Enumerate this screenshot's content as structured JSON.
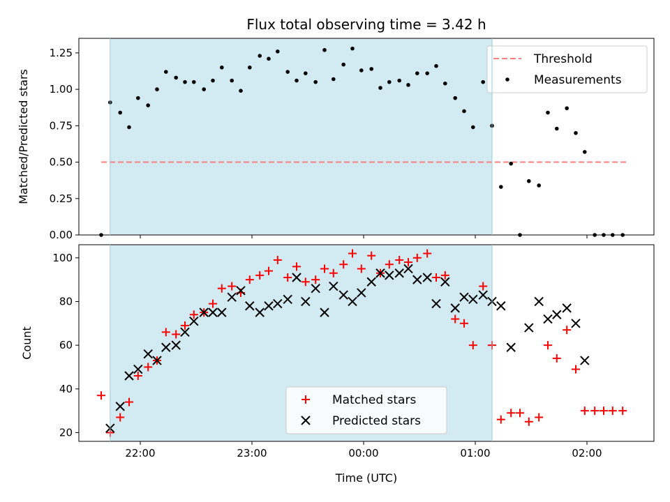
{
  "chart_data": [
    {
      "type": "scatter",
      "title": "Flux total observing time = 3.42 h",
      "ylabel": "Matched/Predicted stars",
      "xlabel": "",
      "x_ticks": [
        "22:00",
        "23:00",
        "00:00",
        "01:00",
        "02:00"
      ],
      "y_ticks": [
        "0.00",
        "0.25",
        "0.50",
        "0.75",
        "1.00",
        "1.25"
      ],
      "ylim": [
        0,
        1.35
      ],
      "xlim_hours": [
        21.45,
        26.6
      ],
      "grid": false,
      "legend_position": "top-right",
      "shaded_span_hours": [
        21.73,
        25.15
      ],
      "shade_color": "#add8e6",
      "threshold": {
        "name": "Threshold",
        "value": 0.5,
        "x_range_hours": [
          21.65,
          26.35
        ],
        "color": "#ff7f7f"
      },
      "series": [
        {
          "name": "Measurements",
          "color": "#000000",
          "marker": "dot",
          "x_hours": [
            21.65,
            21.73,
            21.82,
            21.9,
            21.98,
            22.07,
            22.15,
            22.23,
            22.32,
            22.4,
            22.48,
            22.57,
            22.65,
            22.73,
            22.82,
            22.9,
            22.98,
            23.07,
            23.15,
            23.23,
            23.32,
            23.4,
            23.48,
            23.57,
            23.65,
            23.73,
            23.82,
            23.9,
            23.98,
            24.07,
            24.15,
            24.23,
            24.32,
            24.4,
            24.48,
            24.57,
            24.65,
            24.73,
            24.82,
            24.9,
            24.98,
            25.07,
            25.15,
            25.23,
            25.32,
            25.4,
            25.48,
            25.57,
            25.65,
            25.73,
            25.82,
            25.9,
            25.98,
            26.07,
            26.15,
            26.23,
            26.32
          ],
          "values": [
            0.0,
            0.91,
            0.84,
            0.74,
            0.94,
            0.89,
            1.0,
            1.12,
            1.08,
            1.05,
            1.05,
            1.0,
            1.06,
            1.15,
            1.06,
            0.99,
            1.15,
            1.23,
            1.21,
            1.26,
            1.12,
            1.06,
            1.11,
            1.05,
            1.27,
            1.07,
            1.17,
            1.28,
            1.13,
            1.14,
            1.01,
            1.05,
            1.06,
            1.03,
            1.11,
            1.11,
            1.16,
            1.04,
            0.94,
            0.85,
            0.74,
            1.05,
            0.75,
            0.33,
            0.49,
            0.0,
            0.37,
            0.34,
            0.84,
            0.73,
            0.87,
            0.7,
            0.57,
            0.0,
            0.0,
            0.0,
            0.0
          ]
        }
      ]
    },
    {
      "type": "scatter",
      "title": "",
      "xlabel": "Time (UTC)",
      "ylabel": "Count",
      "x_ticks": [
        "22:00",
        "23:00",
        "00:00",
        "01:00",
        "02:00"
      ],
      "y_ticks": [
        "20",
        "40",
        "60",
        "80",
        "100"
      ],
      "ylim": [
        16,
        106
      ],
      "xlim_hours": [
        21.45,
        26.6
      ],
      "grid": false,
      "legend_position": "bottom-center",
      "shaded_span_hours": [
        21.73,
        25.15
      ],
      "shade_color": "#add8e6",
      "series": [
        {
          "name": "Matched stars",
          "color": "#ff0000",
          "marker": "plus",
          "x_hours": [
            21.65,
            21.73,
            21.82,
            21.9,
            21.98,
            22.07,
            22.15,
            22.23,
            22.32,
            22.4,
            22.48,
            22.57,
            22.65,
            22.73,
            22.82,
            22.9,
            22.98,
            23.07,
            23.15,
            23.23,
            23.32,
            23.4,
            23.48,
            23.57,
            23.65,
            23.73,
            23.82,
            23.9,
            23.98,
            24.07,
            24.15,
            24.23,
            24.32,
            24.4,
            24.48,
            24.57,
            24.65,
            24.73,
            24.82,
            24.9,
            24.98,
            25.07,
            25.15,
            25.23,
            25.32,
            25.4,
            25.48,
            25.57,
            25.65,
            25.73,
            25.82,
            25.9,
            25.98,
            26.07,
            26.15,
            26.23,
            26.32
          ],
          "values": [
            37,
            20,
            27,
            34,
            46,
            50,
            53,
            66,
            65,
            69,
            74,
            75,
            79,
            86,
            87,
            84,
            90,
            92,
            94,
            99,
            91,
            96,
            89,
            90,
            95,
            93,
            97,
            102,
            95,
            101,
            93,
            97,
            99,
            98,
            100,
            102,
            91,
            92,
            72,
            70,
            60,
            87,
            60,
            26,
            29,
            29,
            25,
            27,
            60,
            54,
            67,
            49,
            30,
            30,
            30,
            30,
            30
          ]
        },
        {
          "name": "Predicted stars",
          "color": "#000000",
          "marker": "cross",
          "x_hours": [
            21.73,
            21.82,
            21.9,
            21.98,
            22.07,
            22.15,
            22.23,
            22.32,
            22.4,
            22.48,
            22.57,
            22.65,
            22.73,
            22.82,
            22.9,
            22.98,
            23.07,
            23.15,
            23.23,
            23.32,
            23.4,
            23.48,
            23.57,
            23.65,
            23.73,
            23.82,
            23.9,
            23.98,
            24.07,
            24.15,
            24.23,
            24.32,
            24.4,
            24.48,
            24.57,
            24.65,
            24.73,
            24.82,
            24.9,
            24.98,
            25.07,
            25.15,
            25.23,
            25.32,
            25.48,
            25.57,
            25.65,
            25.73,
            25.82,
            25.9,
            25.98
          ],
          "values": [
            22,
            32,
            46,
            49,
            56,
            53,
            59,
            60,
            66,
            71,
            75,
            75,
            75,
            82,
            85,
            78,
            75,
            78,
            79,
            81,
            91,
            80,
            86,
            75,
            87,
            83,
            80,
            84,
            89,
            93,
            92,
            93,
            95,
            90,
            91,
            79,
            89,
            77,
            82,
            81,
            83,
            80,
            78,
            59,
            68,
            80,
            72,
            74,
            77,
            70,
            53
          ]
        }
      ]
    }
  ]
}
